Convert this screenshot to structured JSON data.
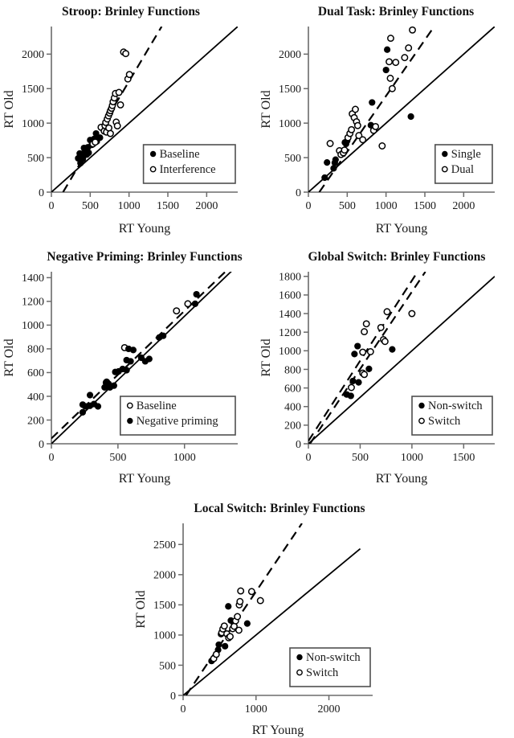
{
  "styles": {
    "background": "#ffffff",
    "ink": "#000000",
    "axis_color": "#6b6b6b",
    "legend_border": "#4f4f4f",
    "text_color": "#1a1a1a"
  },
  "axis_titles": {
    "x": "RT Young",
    "y": "RT Old"
  },
  "chart_data": [
    {
      "type": "scatter",
      "title": "Stroop: Brinley Functions",
      "xlabel": "RT Young",
      "ylabel": "RT Old",
      "xlim": [
        0,
        2400
      ],
      "ylim": [
        0,
        2400
      ],
      "xticks": [
        0,
        500,
        1000,
        1500,
        2000
      ],
      "yticks": [
        0,
        500,
        1000,
        1500,
        2000
      ],
      "grid": false,
      "lines": [
        {
          "name": "identity",
          "style": "solid",
          "from": [
            0,
            0
          ],
          "to": [
            2400,
            2400
          ]
        },
        {
          "name": "regression",
          "style": "dashed",
          "from": [
            150,
            0
          ],
          "to": [
            1420,
            2400
          ]
        }
      ],
      "series": [
        {
          "name": "Baseline",
          "marker": "filled",
          "points": [
            [
              375,
              420
            ],
            [
              345,
              490
            ],
            [
              395,
              555
            ],
            [
              365,
              560
            ],
            [
              405,
              480
            ],
            [
              425,
              535
            ],
            [
              445,
              575
            ],
            [
              455,
              545
            ],
            [
              480,
              570
            ],
            [
              420,
              640
            ],
            [
              470,
              650
            ],
            [
              520,
              685
            ],
            [
              500,
              755
            ],
            [
              550,
              770
            ],
            [
              585,
              735
            ],
            [
              625,
              790
            ],
            [
              575,
              850
            ]
          ]
        },
        {
          "name": "Interference",
          "marker": "open",
          "points": [
            [
              535,
              700
            ],
            [
              565,
              725
            ],
            [
              640,
              940
            ],
            [
              680,
              885
            ],
            [
              690,
              965
            ],
            [
              710,
              870
            ],
            [
              740,
              930
            ],
            [
              760,
              850
            ],
            [
              700,
              1010
            ],
            [
              720,
              1060
            ],
            [
              735,
              1105
            ],
            [
              750,
              1145
            ],
            [
              760,
              1180
            ],
            [
              775,
              1215
            ],
            [
              785,
              1255
            ],
            [
              795,
              1310
            ],
            [
              810,
              1365
            ],
            [
              825,
              1430
            ],
            [
              835,
              1015
            ],
            [
              850,
              960
            ],
            [
              870,
              1445
            ],
            [
              890,
              1265
            ],
            [
              930,
              2030
            ],
            [
              958,
              2008
            ],
            [
              985,
              1640
            ],
            [
              1005,
              1705
            ]
          ]
        }
      ],
      "legend": {
        "position": "bottom-right",
        "entries": [
          {
            "marker": "filled",
            "label": "Baseline"
          },
          {
            "marker": "open",
            "label": "Interference"
          }
        ]
      }
    },
    {
      "type": "scatter",
      "title": "Dual Task: Brinley Functions",
      "xlabel": "RT Young",
      "ylabel": "RT Old",
      "xlim": [
        0,
        2400
      ],
      "ylim": [
        0,
        2400
      ],
      "xticks": [
        0,
        500,
        1000,
        1500,
        2000
      ],
      "yticks": [
        0,
        500,
        1000,
        1500,
        2000
      ],
      "grid": false,
      "lines": [
        {
          "name": "identity",
          "style": "solid",
          "from": [
            0,
            0
          ],
          "to": [
            2400,
            2400
          ]
        },
        {
          "name": "regression",
          "style": "dashed",
          "from": [
            140,
            0
          ],
          "to": [
            1620,
            2400
          ]
        }
      ],
      "series": [
        {
          "name": "Single",
          "marker": "filled",
          "points": [
            [
              210,
              210
            ],
            [
              240,
              430
            ],
            [
              325,
              345
            ],
            [
              340,
              425
            ],
            [
              350,
              470
            ],
            [
              470,
              720
            ],
            [
              485,
              700
            ],
            [
              500,
              745
            ],
            [
              805,
              970
            ],
            [
              820,
              1300
            ],
            [
              1000,
              1770
            ],
            [
              1015,
              2065
            ],
            [
              1320,
              1095
            ]
          ]
        },
        {
          "name": "Dual",
          "marker": "open",
          "points": [
            [
              280,
              705
            ],
            [
              400,
              600
            ],
            [
              420,
              545
            ],
            [
              450,
              570
            ],
            [
              465,
              610
            ],
            [
              510,
              790
            ],
            [
              535,
              850
            ],
            [
              555,
              905
            ],
            [
              565,
              1135
            ],
            [
              590,
              1080
            ],
            [
              605,
              1200
            ],
            [
              620,
              1020
            ],
            [
              635,
              965
            ],
            [
              650,
              820
            ],
            [
              700,
              760
            ],
            [
              840,
              895
            ],
            [
              865,
              950
            ],
            [
              950,
              670
            ],
            [
              1040,
              1890
            ],
            [
              1055,
              1650
            ],
            [
              1060,
              2230
            ],
            [
              1080,
              1500
            ],
            [
              1125,
              1880
            ],
            [
              1240,
              1950
            ],
            [
              1290,
              2090
            ],
            [
              1340,
              2350
            ]
          ]
        }
      ],
      "legend": {
        "position": "bottom-right",
        "entries": [
          {
            "marker": "filled",
            "label": "Single"
          },
          {
            "marker": "open",
            "label": "Dual"
          }
        ]
      }
    },
    {
      "type": "scatter",
      "title": "Negative Priming: Brinley Functions",
      "xlabel": "RT Young",
      "ylabel": "RT Old",
      "xlim": [
        0,
        1400
      ],
      "ylim": [
        0,
        1450
      ],
      "xticks": [
        0,
        500,
        1000
      ],
      "yticks": [
        0,
        200,
        400,
        600,
        800,
        1000,
        1200,
        1400
      ],
      "grid": false,
      "lines": [
        {
          "name": "identity",
          "style": "solid",
          "from": [
            0,
            0
          ],
          "to": [
            1400,
            1505
          ]
        },
        {
          "name": "regression",
          "style": "dashed",
          "from": [
            0,
            45
          ],
          "to": [
            1400,
            1550
          ]
        }
      ],
      "series": [
        {
          "name": "Baseline",
          "marker": "open",
          "points": [
            [
              415,
              520
            ],
            [
              550,
              810
            ],
            [
              940,
              1120
            ],
            [
              1025,
              1180
            ]
          ]
        },
        {
          "name": "Negative priming",
          "marker": "filled",
          "points": [
            [
              235,
              265
            ],
            [
              235,
              330
            ],
            [
              255,
              315
            ],
            [
              290,
              320
            ],
            [
              320,
              335
            ],
            [
              350,
              315
            ],
            [
              290,
              410
            ],
            [
              400,
              475
            ],
            [
              410,
              515
            ],
            [
              430,
              505
            ],
            [
              440,
              475
            ],
            [
              470,
              490
            ],
            [
              480,
              605
            ],
            [
              505,
              610
            ],
            [
              535,
              630
            ],
            [
              565,
              620
            ],
            [
              565,
              705
            ],
            [
              595,
              695
            ],
            [
              580,
              800
            ],
            [
              615,
              790
            ],
            [
              675,
              725
            ],
            [
              705,
              695
            ],
            [
              735,
              715
            ],
            [
              810,
              895
            ],
            [
              840,
              910
            ],
            [
              1080,
              1180
            ],
            [
              1090,
              1260
            ]
          ]
        }
      ],
      "legend": {
        "position": "bottom-right",
        "entries": [
          {
            "marker": "open",
            "label": "Baseline"
          },
          {
            "marker": "filled",
            "label": "Negative priming"
          }
        ]
      }
    },
    {
      "type": "scatter",
      "title": "Global Switch: Brinley Functions",
      "xlabel": "RT Young",
      "ylabel": "RT Old",
      "xlim": [
        0,
        1800
      ],
      "ylim": [
        0,
        1850
      ],
      "xticks": [
        0,
        500,
        1000,
        1500
      ],
      "yticks": [
        0,
        200,
        400,
        600,
        800,
        1000,
        1200,
        1400,
        1600,
        1800
      ],
      "grid": false,
      "lines": [
        {
          "name": "identity",
          "style": "solid",
          "from": [
            0,
            0
          ],
          "to": [
            1800,
            1800
          ]
        },
        {
          "name": "regression-upper",
          "style": "dashed",
          "from": [
            0,
            30
          ],
          "to": [
            1055,
            1850
          ]
        },
        {
          "name": "regression-lower",
          "style": "dashed",
          "from": [
            15,
            0
          ],
          "to": [
            1130,
            1850
          ]
        }
      ],
      "series": [
        {
          "name": "Non-switch",
          "marker": "filled",
          "points": [
            [
              370,
              530
            ],
            [
              410,
              515
            ],
            [
              430,
              675
            ],
            [
              485,
              660
            ],
            [
              445,
              965
            ],
            [
              475,
              1050
            ],
            [
              585,
              805
            ],
            [
              810,
              1015
            ]
          ]
        },
        {
          "name": "Switch",
          "marker": "open",
          "points": [
            [
              415,
              605
            ],
            [
              525,
              760
            ],
            [
              540,
              745
            ],
            [
              525,
              985
            ],
            [
              600,
              990
            ],
            [
              540,
              1205
            ],
            [
              560,
              1290
            ],
            [
              700,
              1250
            ],
            [
              725,
              1120
            ],
            [
              740,
              1100
            ],
            [
              760,
              1420
            ],
            [
              1000,
              1400
            ]
          ]
        }
      ],
      "legend": {
        "position": "bottom-right",
        "entries": [
          {
            "marker": "filled",
            "label": "Non-switch"
          },
          {
            "marker": "open",
            "label": "Switch"
          }
        ]
      }
    },
    {
      "type": "scatter",
      "title": "Local Switch: Brinley Functions",
      "xlabel": "RT Young",
      "ylabel": "RT Old",
      "xlim": [
        0,
        2600
      ],
      "ylim": [
        0,
        2850
      ],
      "xticks": [
        0,
        1000,
        2000
      ],
      "yticks": [
        0,
        500,
        1000,
        1500,
        2000,
        2500
      ],
      "grid": false,
      "lines": [
        {
          "name": "identity",
          "style": "solid",
          "from": [
            0,
            0
          ],
          "to": [
            2430,
            2430
          ]
        },
        {
          "name": "regression",
          "style": "dashed",
          "from": [
            40,
            0
          ],
          "to": [
            1630,
            2850
          ]
        }
      ],
      "series": [
        {
          "name": "Non-switch",
          "marker": "filled",
          "points": [
            [
              390,
              570
            ],
            [
              480,
              755
            ],
            [
              490,
              840
            ],
            [
              575,
              815
            ],
            [
              520,
              1015
            ],
            [
              620,
              1475
            ],
            [
              655,
              1240
            ],
            [
              690,
              1210
            ],
            [
              880,
              1190
            ]
          ]
        },
        {
          "name": "Switch",
          "marker": "open",
          "points": [
            [
              420,
              610
            ],
            [
              455,
              680
            ],
            [
              530,
              1040
            ],
            [
              545,
              1100
            ],
            [
              565,
              1150
            ],
            [
              600,
              1020
            ],
            [
              625,
              955
            ],
            [
              645,
              975
            ],
            [
              680,
              1105
            ],
            [
              700,
              1145
            ],
            [
              720,
              1235
            ],
            [
              745,
              1305
            ],
            [
              765,
              1080
            ],
            [
              770,
              1500
            ],
            [
              780,
              1555
            ],
            [
              790,
              1730
            ],
            [
              940,
              1720
            ],
            [
              1060,
              1570
            ]
          ]
        }
      ],
      "legend": {
        "position": "bottom-right",
        "entries": [
          {
            "marker": "filled",
            "label": "Non-switch"
          },
          {
            "marker": "open",
            "label": "Switch"
          }
        ]
      }
    }
  ]
}
